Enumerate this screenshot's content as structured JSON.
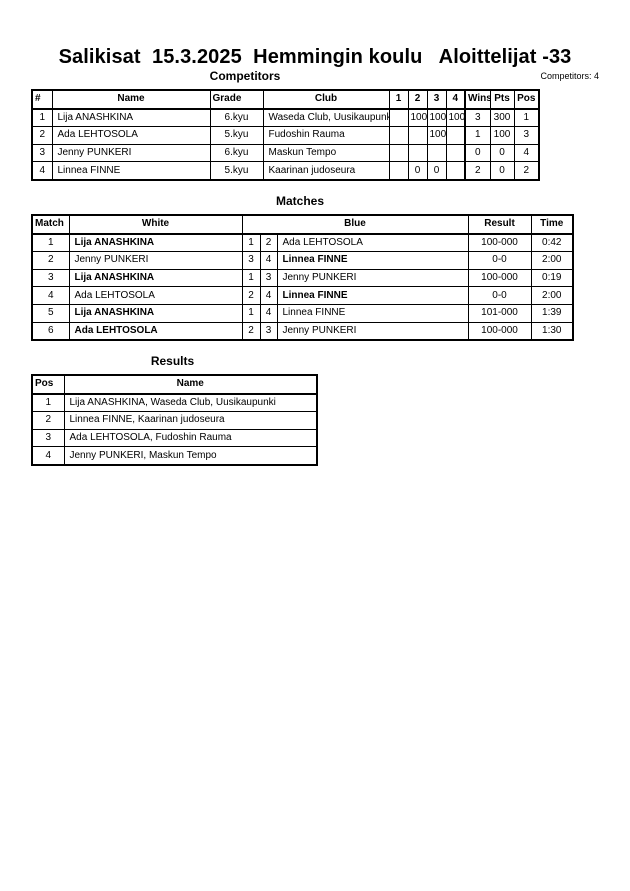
{
  "title": "Salikisat  15.3.2025  Hemmingin koulu   Aloittelijat -33",
  "competitors": {
    "heading": "Competitors",
    "count": "Competitors: 4",
    "columns": [
      "#",
      "Name",
      "Grade",
      "Club",
      "1",
      "2",
      "3",
      "4",
      "Wins",
      "Pts",
      "Pos"
    ],
    "rows": [
      [
        "1",
        "Lija ANASHKINA",
        "6.kyu",
        "Waseda Club, Uusikaupunki",
        "",
        "100",
        "100",
        "100",
        "3",
        "300",
        "1"
      ],
      [
        "2",
        "Ada LEHTOSOLA",
        "5.kyu",
        "Fudoshin Rauma",
        "",
        "",
        "100",
        "",
        "1",
        "100",
        "3"
      ],
      [
        "3",
        "Jenny PUNKERI",
        "6.kyu",
        "Maskun Tempo",
        "",
        "",
        "",
        "",
        "0",
        "0",
        "4"
      ],
      [
        "4",
        "Linnea FINNE",
        "5.kyu",
        "Kaarinan judoseura",
        "",
        "0",
        "0",
        "",
        "2",
        "0",
        "2"
      ]
    ]
  },
  "matches": {
    "heading": "Matches",
    "columns": [
      "Match",
      "White",
      "",
      "",
      "Blue",
      "Result",
      "Time"
    ],
    "rows": [
      {
        "cells": [
          "1",
          "Lija ANASHKINA",
          "1",
          "2",
          "Ada LEHTOSOLA",
          "100-000",
          "0:42"
        ],
        "winner": "white"
      },
      {
        "cells": [
          "2",
          "Jenny PUNKERI",
          "3",
          "4",
          "Linnea FINNE",
          "0-0",
          "2:00"
        ],
        "winner": "blue"
      },
      {
        "cells": [
          "3",
          "Lija ANASHKINA",
          "1",
          "3",
          "Jenny PUNKERI",
          "100-000",
          "0:19"
        ],
        "winner": "white"
      },
      {
        "cells": [
          "4",
          "Ada LEHTOSOLA",
          "2",
          "4",
          "Linnea FINNE",
          "0-0",
          "2:00"
        ],
        "winner": "blue"
      },
      {
        "cells": [
          "5",
          "Lija ANASHKINA",
          "1",
          "4",
          "Linnea FINNE",
          "101-000",
          "1:39"
        ],
        "winner": "white"
      },
      {
        "cells": [
          "6",
          "Ada LEHTOSOLA",
          "2",
          "3",
          "Jenny PUNKERI",
          "100-000",
          "1:30"
        ],
        "winner": "white"
      }
    ]
  },
  "results": {
    "heading": "Results",
    "columns": [
      "Pos",
      "Name"
    ],
    "rows": [
      [
        "1",
        "Lija ANASHKINA, Waseda Club, Uusikaupunki"
      ],
      [
        "2",
        "Linnea FINNE, Kaarinan judoseura"
      ],
      [
        "3",
        "Ada LEHTOSOLA, Fudoshin Rauma"
      ],
      [
        "4",
        "Jenny PUNKERI, Maskun Tempo"
      ]
    ]
  }
}
